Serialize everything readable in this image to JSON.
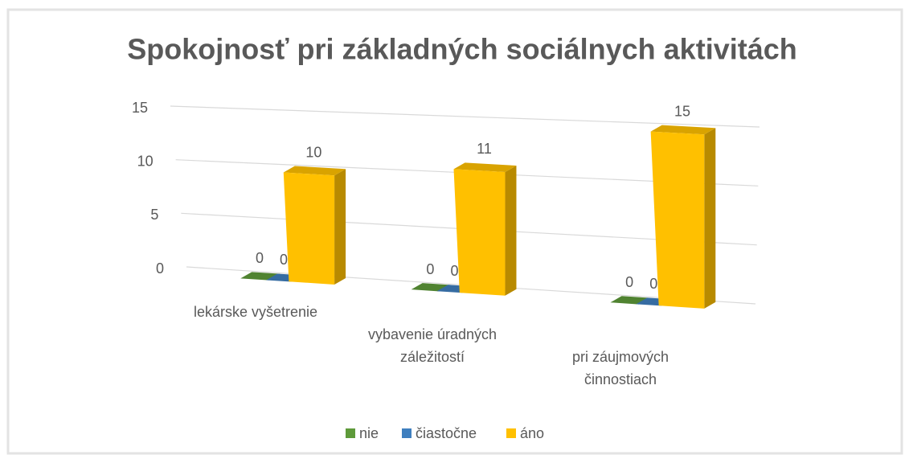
{
  "chart_data": {
    "type": "bar3d",
    "title": "Spokojnosť pri základných sociálnych aktivitách",
    "categories": [
      "lekárske vyšetrenie",
      "vybavenie úradných záležitostí",
      "pri záujmových činnostiach"
    ],
    "series": [
      {
        "name": "nie",
        "color": "#5e9a3a",
        "values": [
          0,
          0,
          0
        ]
      },
      {
        "name": "čiastočne",
        "color": "#3f7fbf",
        "values": [
          0,
          0,
          0
        ]
      },
      {
        "name": "áno",
        "color": "#ffc000",
        "values": [
          10,
          11,
          15
        ]
      }
    ],
    "ylim": [
      0,
      15
    ],
    "yticks": [
      0,
      5,
      10,
      15
    ],
    "grid": true,
    "legend": "bottom"
  }
}
